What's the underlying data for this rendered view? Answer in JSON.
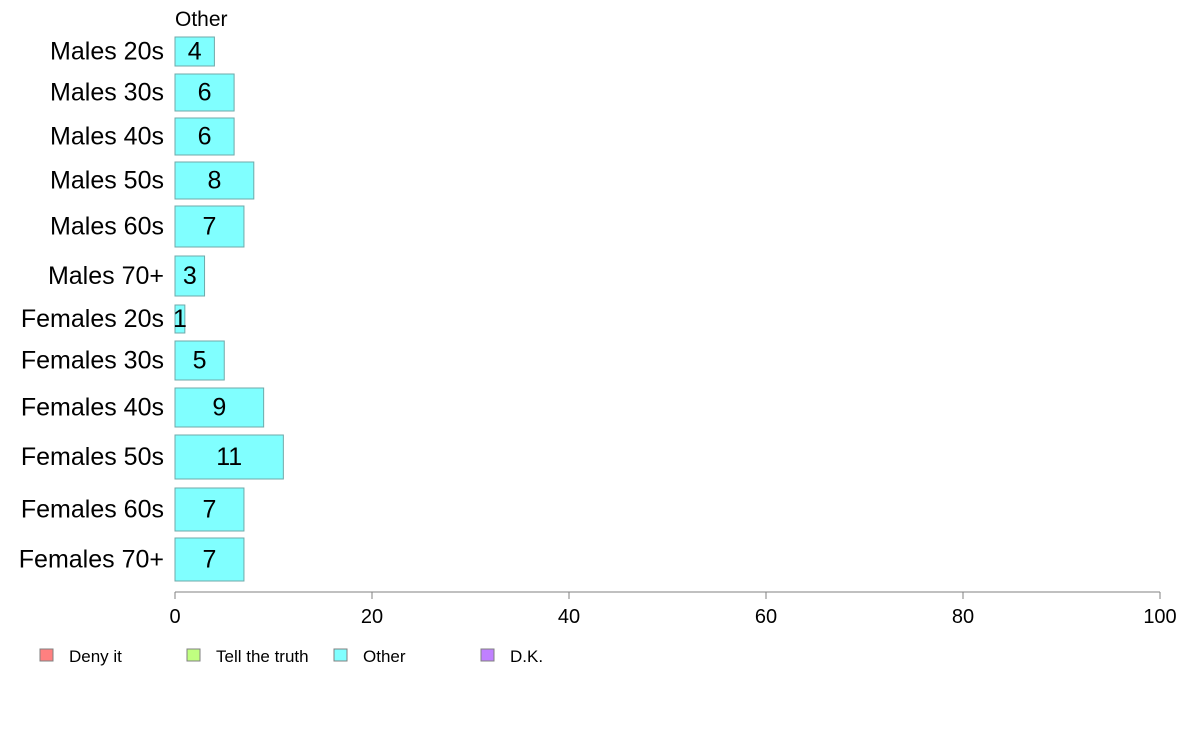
{
  "chart_data": {
    "type": "bar",
    "orientation": "horizontal",
    "series_header": "Other",
    "categories": [
      "Males 20s",
      "Males 30s",
      "Males 40s",
      "Males 50s",
      "Males 60s",
      "Males 70+",
      "Females 20s",
      "Females 30s",
      "Females 40s",
      "Females 50s",
      "Females 60s",
      "Females 70+"
    ],
    "values": [
      4,
      6,
      6,
      8,
      7,
      3,
      1,
      5,
      9,
      11,
      7,
      7
    ],
    "value_labels": [
      "4",
      "6",
      "6",
      "8",
      "7",
      "3",
      "1",
      "5",
      "9",
      "11",
      "7",
      "7"
    ],
    "xlim": [
      0,
      100
    ],
    "xticks": [
      "0",
      "20",
      "40",
      "60",
      "80",
      "100"
    ],
    "bar_color": "#80ffff",
    "bar_border_color": "#6fa8a8",
    "axis_color": "#808080",
    "legend": {
      "placement": "bottom-left",
      "items": [
        {
          "label": "Deny it",
          "color": "#ff8080"
        },
        {
          "label": "Tell the truth",
          "color": "#c0ff80"
        },
        {
          "label": "Other",
          "color": "#80ffff"
        },
        {
          "label": "D.K.",
          "color": "#c080ff"
        }
      ]
    }
  }
}
